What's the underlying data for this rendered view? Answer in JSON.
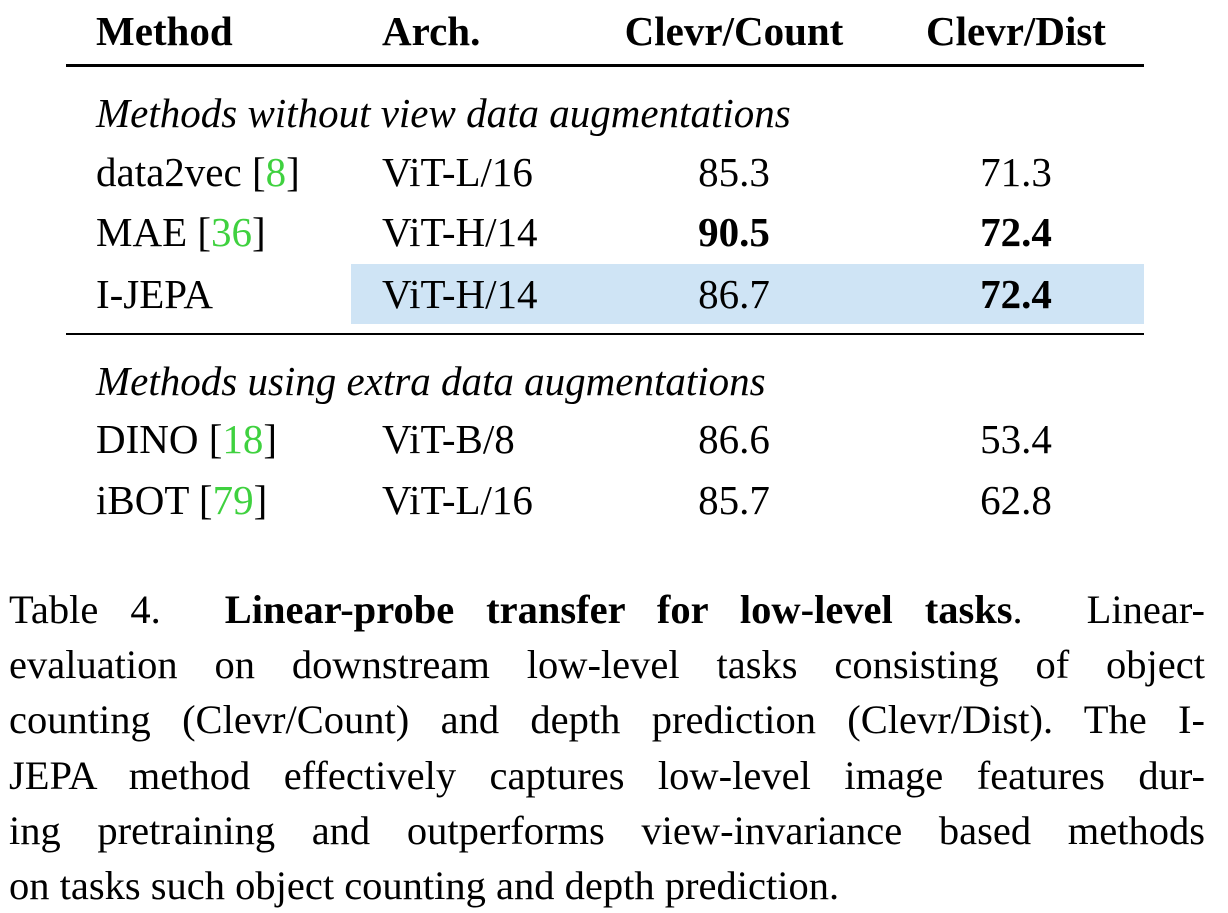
{
  "table": {
    "headers": {
      "method": "Method",
      "arch": "Arch.",
      "count": "Clevr/Count",
      "dist": "Clevr/Dist"
    },
    "sections": [
      {
        "title": "Methods without view data augmentations",
        "rows": [
          {
            "method": "data2vec",
            "cite": "8",
            "arch": "ViT-L/16",
            "count": "85.3",
            "dist": "71.3",
            "count_bold": false,
            "dist_bold": false,
            "highlight": false
          },
          {
            "method": "MAE",
            "cite": "36",
            "arch": "ViT-H/14",
            "count": "90.5",
            "dist": "72.4",
            "count_bold": true,
            "dist_bold": true,
            "highlight": false
          },
          {
            "method": "I-JEPA",
            "cite": "",
            "arch": "ViT-H/14",
            "count": "86.7",
            "dist": "72.4",
            "count_bold": false,
            "dist_bold": true,
            "highlight": true
          }
        ]
      },
      {
        "title": "Methods using extra data augmentations",
        "rows": [
          {
            "method": "DINO",
            "cite": "18",
            "arch": "ViT-B/8",
            "count": "86.6",
            "dist": "53.4",
            "count_bold": false,
            "dist_bold": false,
            "highlight": false
          },
          {
            "method": "iBOT",
            "cite": "79",
            "arch": "ViT-L/16",
            "count": "85.7",
            "dist": "62.8",
            "count_bold": false,
            "dist_bold": false,
            "highlight": false
          }
        ]
      }
    ],
    "colors": {
      "citation": "#3fd13f",
      "highlight": "#cfe4f5"
    }
  },
  "caption": {
    "label": "Table 4.",
    "bold_title": "Linear-probe transfer for low-level tasks",
    "lines": [
      "Linear-",
      "evaluation on downstream low-level tasks consisting of object",
      "counting (Clevr/Count) and depth prediction (Clevr/Dist). The I-",
      "JEPA method effectively captures low-level image features dur-",
      "ing pretraining and outperforms view-invariance based methods",
      "on tasks such object counting and depth prediction."
    ]
  }
}
